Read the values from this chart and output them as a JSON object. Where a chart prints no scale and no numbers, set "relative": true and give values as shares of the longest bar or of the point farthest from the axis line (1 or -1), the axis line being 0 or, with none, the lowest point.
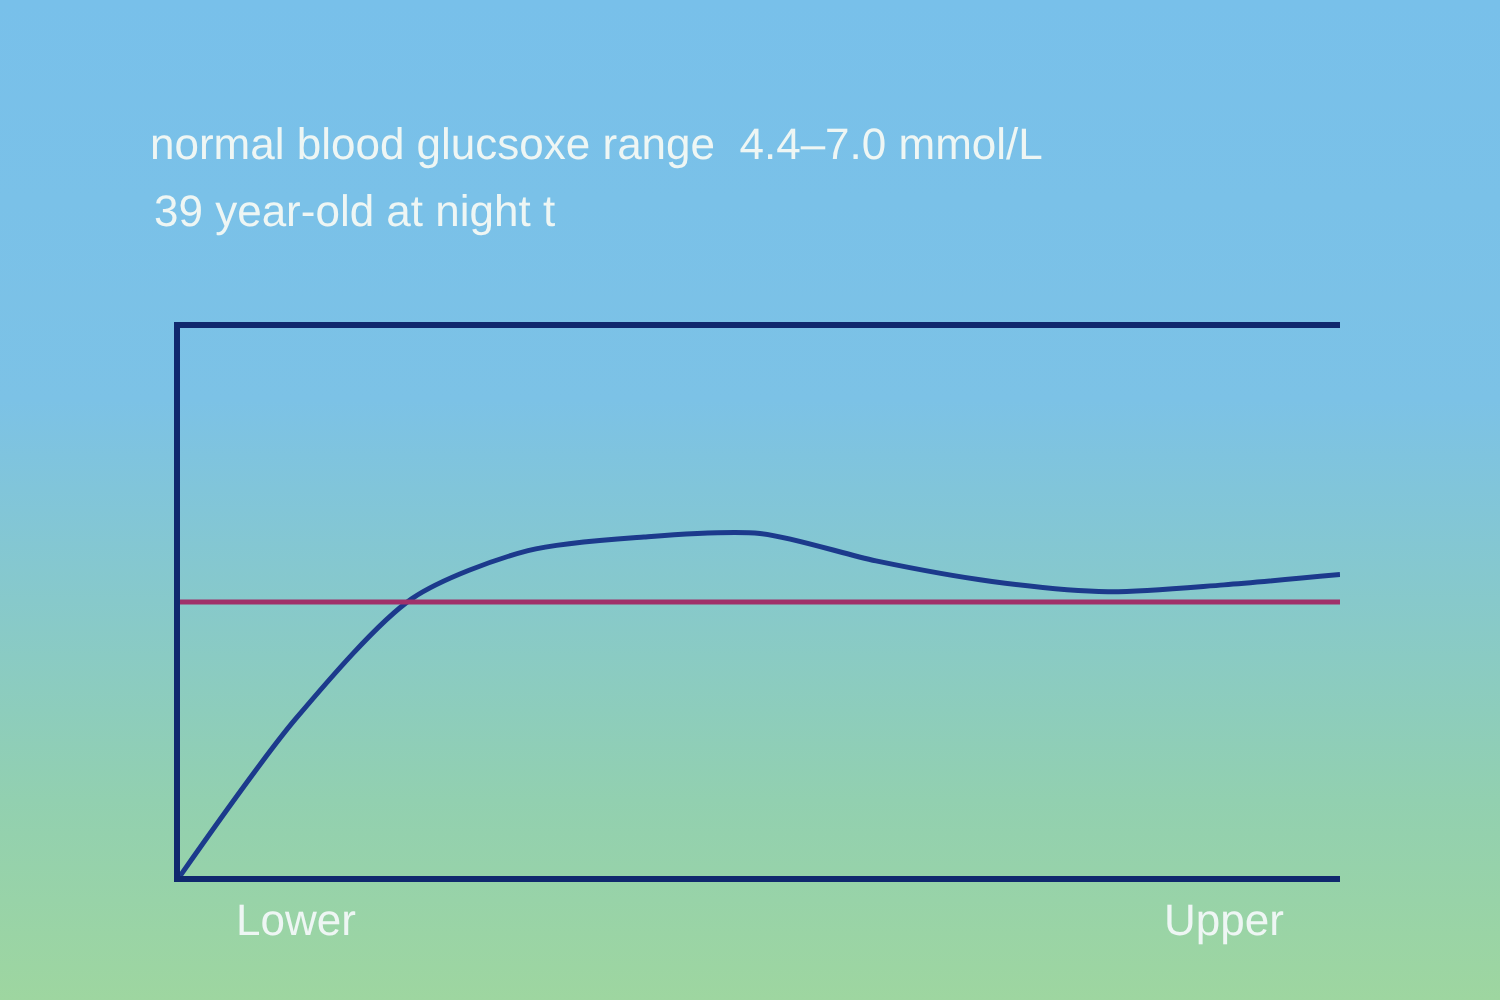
{
  "chart_data": {
    "type": "line",
    "title": "normal blood glucsoxe range  4.4–7.0 mmol/L",
    "subtitle": "39 year-old at night t",
    "relative": true,
    "categories": [
      null,
      "Lower",
      null,
      null,
      null,
      null,
      null,
      null,
      null,
      "Upper",
      null
    ],
    "series": [
      {
        "color": "#1c3a8c",
        "values": [
          0,
          0.46,
          0.81,
          0.95,
          0.99,
          1,
          0.92,
          0.86,
          0.83,
          0.85,
          0.88
        ]
      }
    ],
    "ref_lines": [
      {
        "axis": "y",
        "value": 0.8,
        "color": "#a0306a"
      }
    ],
    "grid": false,
    "marker": "none",
    "line_style": "solid"
  }
}
